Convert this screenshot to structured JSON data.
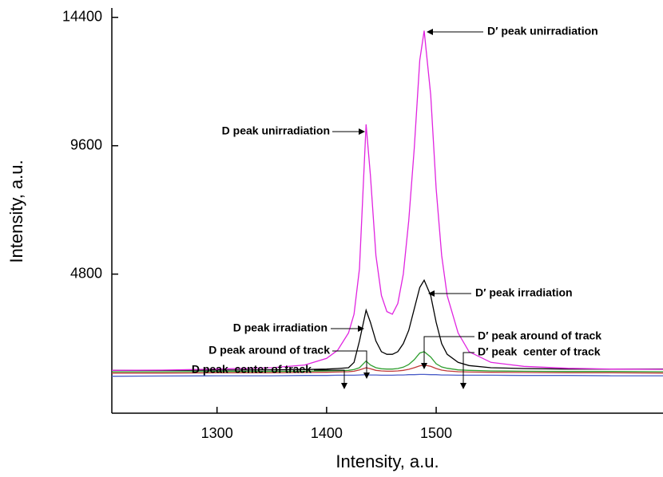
{
  "chart_data": {
    "type": "line",
    "xlabel": "Intensity, a.u.",
    "ylabel": "Intensity, a.u.",
    "xlim": [
      1204,
      1707
    ],
    "ylim": [
      -400,
      14750
    ],
    "xticks": [
      1300,
      1400,
      1500
    ],
    "yticks": [
      4800,
      9600,
      14400
    ],
    "x": [
      1204,
      1250,
      1300,
      1350,
      1380,
      1400,
      1410,
      1420,
      1425,
      1430,
      1436,
      1440,
      1445,
      1450,
      1455,
      1460,
      1465,
      1470,
      1475,
      1480,
      1485,
      1489,
      1495,
      1500,
      1505,
      1510,
      1520,
      1530,
      1550,
      1580,
      1620,
      1660,
      1707
    ],
    "series": [
      {
        "color": "#4a5cc8",
        "values": [
          980,
          990,
          1000,
          1000,
          1010,
          1010,
          1020,
          1020,
          1020,
          1030,
          1040,
          1030,
          1030,
          1020,
          1020,
          1020,
          1030,
          1030,
          1040,
          1040,
          1050,
          1050,
          1040,
          1040,
          1030,
          1030,
          1020,
          1020,
          1020,
          1010,
          1010,
          1000,
          1000
        ]
      },
      {
        "color": "#c03838",
        "values": [
          1100,
          1100,
          1110,
          1110,
          1120,
          1130,
          1140,
          1150,
          1170,
          1220,
          1300,
          1260,
          1200,
          1180,
          1170,
          1170,
          1180,
          1200,
          1240,
          1300,
          1370,
          1400,
          1350,
          1270,
          1210,
          1180,
          1150,
          1140,
          1130,
          1120,
          1110,
          1110,
          1100
        ]
      },
      {
        "color": "#2e9e2e",
        "values": [
          1150,
          1150,
          1160,
          1160,
          1170,
          1180,
          1190,
          1200,
          1230,
          1300,
          1550,
          1400,
          1300,
          1260,
          1250,
          1250,
          1270,
          1320,
          1420,
          1600,
          1850,
          1900,
          1700,
          1450,
          1330,
          1280,
          1220,
          1200,
          1180,
          1170,
          1160,
          1160,
          1150
        ]
      },
      {
        "color": "#000000",
        "values": [
          1200,
          1200,
          1210,
          1220,
          1230,
          1250,
          1270,
          1300,
          1500,
          2300,
          3450,
          3000,
          2300,
          1900,
          1800,
          1800,
          1900,
          2200,
          2700,
          3500,
          4300,
          4570,
          4000,
          3000,
          2200,
          1800,
          1500,
          1380,
          1300,
          1270,
          1250,
          1250,
          1250
        ]
      },
      {
        "color": "#e024e0",
        "values": [
          1200,
          1210,
          1250,
          1300,
          1400,
          1650,
          1950,
          2600,
          3300,
          5000,
          10400,
          8500,
          5500,
          4000,
          3400,
          3300,
          3700,
          4800,
          6800,
          9500,
          12800,
          13900,
          11500,
          8000,
          5500,
          4000,
          2600,
          1900,
          1500,
          1350,
          1280,
          1250,
          1240
        ]
      }
    ],
    "annotations": [
      "D peak unirradiation",
      "D′ peak unirradiation",
      "D′ peak irradiation",
      "D peak irradiation",
      "D peak around of track",
      "D′ peak around of track",
      "D peak  center of track",
      "D′ peak  center of track"
    ]
  }
}
